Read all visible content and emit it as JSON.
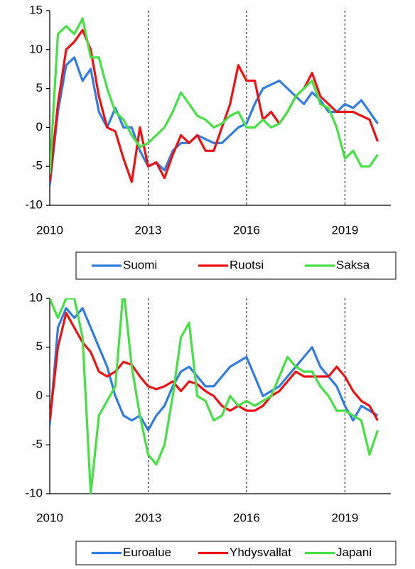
{
  "chart_data": [
    {
      "type": "line",
      "x": [
        2010,
        2010.25,
        2010.5,
        2010.75,
        2011,
        2011.25,
        2011.5,
        2011.75,
        2012,
        2012.25,
        2012.5,
        2012.75,
        2013,
        2013.25,
        2013.5,
        2013.75,
        2014,
        2014.25,
        2014.5,
        2014.75,
        2015,
        2015.25,
        2015.5,
        2015.75,
        2016,
        2016.25,
        2016.5,
        2016.75,
        2017,
        2017.25,
        2017.5,
        2017.75,
        2018,
        2018.25,
        2018.5,
        2018.75,
        2019,
        2019.25,
        2019.5,
        2019.75,
        2020
      ],
      "xlim": [
        2010,
        2020.4
      ],
      "xticks": [
        2010,
        2013,
        2016,
        2019
      ],
      "xgrid": true,
      "ylim": [
        -10,
        15
      ],
      "yticks": [
        -10,
        -5,
        0,
        5,
        10,
        15
      ],
      "series": [
        {
          "name": "Suomi",
          "color": "#2f7de1",
          "values": [
            -7.5,
            2,
            8,
            9,
            6,
            7.5,
            2,
            0,
            2.5,
            0,
            0,
            -3,
            -5,
            -4.5,
            -5.5,
            -3,
            -2,
            -2,
            -1,
            -1.5,
            -2,
            -2,
            -1,
            0,
            0.5,
            3,
            5,
            5.5,
            6,
            5,
            4,
            3,
            4.5,
            3.5,
            2,
            2,
            3,
            2.5,
            3.5,
            2,
            0.5
          ]
        },
        {
          "name": "Ruotsi",
          "color": "#ee1111",
          "values": [
            -7,
            3,
            10,
            11,
            12.5,
            10,
            4,
            0,
            -0.5,
            -4,
            -7,
            0,
            -5,
            -4.5,
            -6.5,
            -3.5,
            -1,
            -2,
            -1,
            -3,
            -3,
            0,
            3,
            8,
            6,
            6,
            1,
            2,
            0.5,
            2,
            4,
            5,
            7,
            4,
            3,
            2,
            2,
            2,
            1.5,
            1,
            -1.8
          ]
        },
        {
          "name": "Saksa",
          "color": "#44e044",
          "values": [
            -6,
            12,
            13,
            12,
            14,
            9,
            9,
            5,
            2,
            1,
            -1,
            -2.5,
            -2,
            -1,
            0,
            2,
            4.5,
            3,
            1.5,
            1,
            0,
            0.5,
            1.5,
            2,
            0,
            0,
            1,
            0,
            0.5,
            2,
            4,
            5,
            6,
            3,
            2.5,
            0,
            -4,
            -3,
            -5,
            -5,
            -3.5
          ]
        }
      ]
    },
    {
      "type": "line",
      "x": [
        2010,
        2010.25,
        2010.5,
        2010.75,
        2011,
        2011.25,
        2011.5,
        2011.75,
        2012,
        2012.25,
        2012.5,
        2012.75,
        2013,
        2013.25,
        2013.5,
        2013.75,
        2014,
        2014.25,
        2014.5,
        2014.75,
        2015,
        2015.25,
        2015.5,
        2015.75,
        2016,
        2016.25,
        2016.5,
        2016.75,
        2017,
        2017.25,
        2017.5,
        2017.75,
        2018,
        2018.25,
        2018.5,
        2018.75,
        2019,
        2019.25,
        2019.5,
        2019.75,
        2020
      ],
      "xlim": [
        2010,
        2020.4
      ],
      "xticks": [
        2010,
        2013,
        2016,
        2019
      ],
      "xgrid": true,
      "ylim": [
        -10,
        10
      ],
      "yticks": [
        -10,
        -5,
        0,
        5,
        10
      ],
      "series": [
        {
          "name": "Euroalue",
          "color": "#2f7de1",
          "values": [
            -3,
            7,
            9,
            8,
            9,
            7,
            5,
            3,
            0,
            -2,
            -2.5,
            -2,
            -3.5,
            -2,
            -1,
            1,
            2.5,
            3,
            2,
            1,
            1,
            2,
            3,
            3.5,
            4,
            2,
            0,
            0.5,
            1,
            2,
            3,
            4,
            5,
            3,
            2,
            1,
            -1,
            -2.5,
            -1,
            -1.5,
            -2
          ]
        },
        {
          "name": "Yhdysvallat",
          "color": "#ee1111",
          "values": [
            -2.5,
            5,
            8.5,
            7,
            5.5,
            4.5,
            2.5,
            2,
            2.5,
            3.5,
            3.2,
            2,
            1,
            0.7,
            1,
            1.5,
            0.5,
            1.5,
            1.2,
            0.5,
            0,
            -1,
            -1.5,
            -1,
            -1.5,
            -1.5,
            -1,
            0,
            0.5,
            1.5,
            2.5,
            2,
            2,
            2,
            2,
            3,
            2,
            0.5,
            -0.5,
            -1,
            -2.5
          ]
        },
        {
          "name": "Japani",
          "color": "#44e044",
          "values": [
            10,
            8,
            10,
            10,
            6,
            -10,
            -2,
            -0.5,
            1,
            11,
            3,
            -2,
            -6,
            -7,
            -5,
            0,
            6,
            7.5,
            0,
            -0.5,
            -2.5,
            -2,
            0,
            -1,
            -0.5,
            -1,
            -0.5,
            0,
            2,
            4,
            3,
            2.5,
            2.5,
            1,
            0,
            -1.5,
            -1.5,
            -2,
            -2.5,
            -6,
            -3.5
          ]
        }
      ]
    }
  ]
}
